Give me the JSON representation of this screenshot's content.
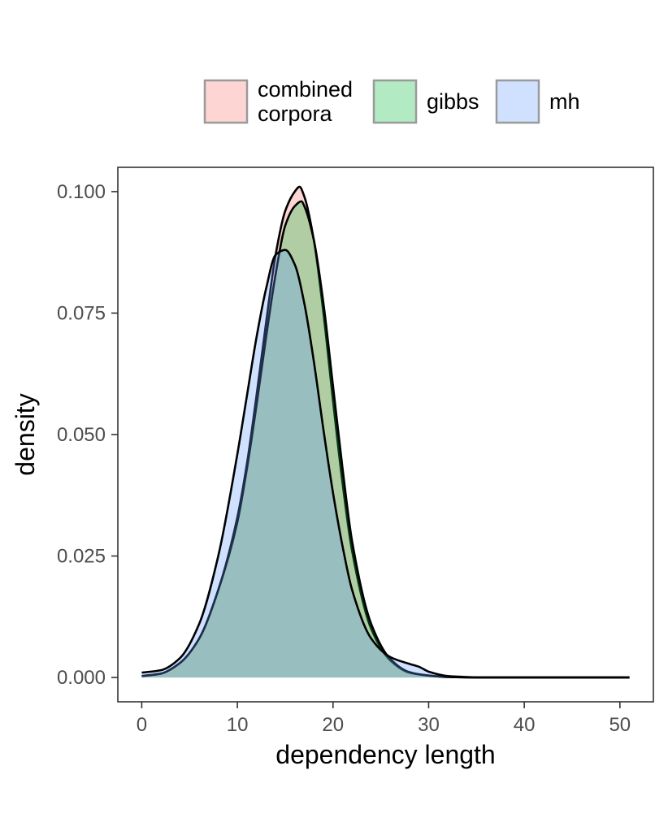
{
  "chart_data": {
    "type": "area",
    "title": "",
    "xlabel": "dependency length",
    "ylabel": "density",
    "xlim": [
      -2.5,
      53.5
    ],
    "ylim": [
      -0.005,
      0.105
    ],
    "x_ticks": [
      0,
      10,
      20,
      30,
      40,
      50
    ],
    "x_tick_labels": [
      "0",
      "10",
      "20",
      "30",
      "40",
      "50"
    ],
    "y_ticks": [
      0,
      0.025,
      0.05,
      0.075,
      0.1
    ],
    "y_tick_labels": [
      "0.000",
      "0.025",
      "0.050",
      "0.075",
      "0.100"
    ],
    "grid": false,
    "legend_position": "top",
    "fill_opacity": 0.3,
    "series": [
      {
        "name": "combined corpora",
        "legend_lines": [
          "combined",
          "corpora"
        ],
        "color": "#F8766D",
        "x": [
          0,
          2,
          4,
          6,
          8,
          10,
          11,
          12,
          13,
          14,
          15,
          16,
          16.5,
          17,
          18,
          19,
          20,
          21,
          22,
          24,
          26,
          28,
          30,
          32,
          34,
          36,
          40,
          45,
          51
        ],
        "y": [
          0.0003,
          0.0008,
          0.003,
          0.008,
          0.018,
          0.033,
          0.044,
          0.058,
          0.073,
          0.087,
          0.096,
          0.1,
          0.101,
          0.099,
          0.09,
          0.075,
          0.057,
          0.04,
          0.026,
          0.01,
          0.0035,
          0.001,
          0.0004,
          0.0001,
          3e-05,
          0,
          0,
          0,
          0
        ]
      },
      {
        "name": "gibbs",
        "legend_lines": [
          "gibbs"
        ],
        "color": "#00BA38",
        "x": [
          0,
          2,
          4,
          6,
          8,
          10,
          11,
          12,
          13,
          14,
          15,
          16,
          16.7,
          17,
          18,
          19,
          20,
          21,
          22,
          24,
          26,
          28,
          30,
          32,
          34,
          36,
          40,
          45,
          51
        ],
        "y": [
          0.0003,
          0.0008,
          0.003,
          0.008,
          0.018,
          0.032,
          0.043,
          0.056,
          0.07,
          0.083,
          0.093,
          0.097,
          0.098,
          0.097,
          0.09,
          0.077,
          0.06,
          0.043,
          0.028,
          0.011,
          0.0038,
          0.0011,
          0.0004,
          0.0001,
          3e-05,
          0,
          0,
          0,
          0
        ]
      },
      {
        "name": "mh",
        "legend_lines": [
          "mh"
        ],
        "color": "#619CFF",
        "x": [
          0,
          2,
          4,
          6,
          8,
          10,
          11,
          12,
          13,
          14,
          15,
          16,
          17,
          18,
          19,
          20,
          21,
          22,
          24,
          26,
          28,
          29,
          30,
          32,
          34,
          36,
          40,
          45,
          51
        ],
        "y": [
          0.001,
          0.0015,
          0.004,
          0.011,
          0.025,
          0.046,
          0.058,
          0.07,
          0.08,
          0.087,
          0.088,
          0.085,
          0.077,
          0.065,
          0.051,
          0.038,
          0.027,
          0.018,
          0.008,
          0.0042,
          0.0028,
          0.0022,
          0.0012,
          0.0003,
          0.0001,
          0,
          0,
          0,
          0
        ]
      }
    ]
  }
}
